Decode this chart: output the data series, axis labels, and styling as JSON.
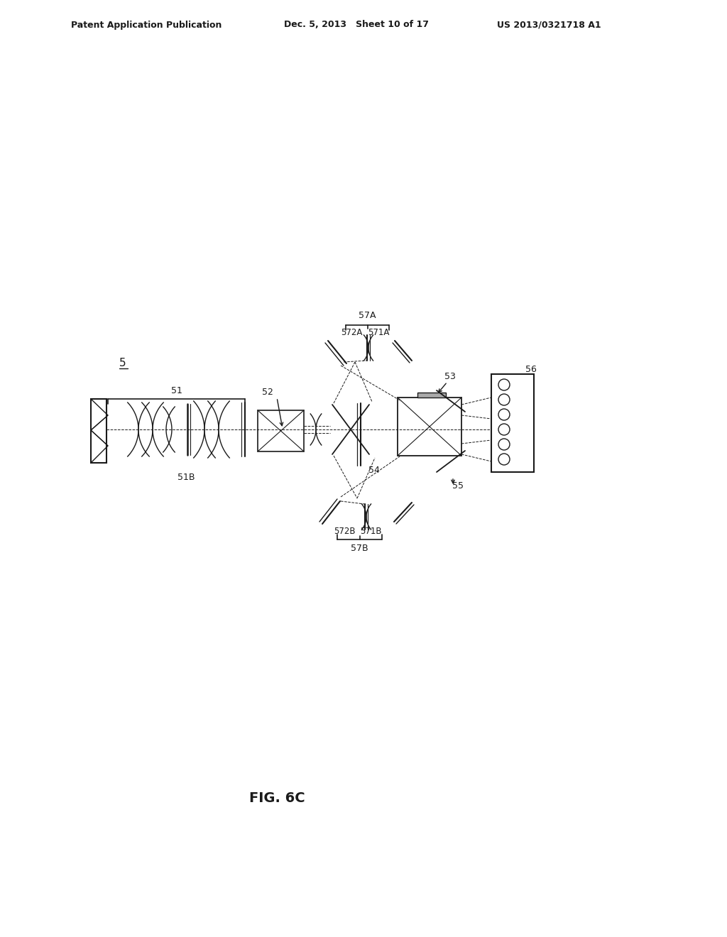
{
  "bg_color": "#ffffff",
  "line_color": "#1a1a1a",
  "header_left": "Patent Application Publication",
  "header_mid": "Dec. 5, 2013   Sheet 10 of 17",
  "header_right": "US 2013/0321718 A1",
  "fig_label": "FIG. 6C",
  "label_5": "5",
  "label_51": "51",
  "label_51B": "51B",
  "label_52": "52",
  "label_53": "53",
  "label_54": "54",
  "label_55": "55",
  "label_56": "56",
  "label_57A": "57A",
  "label_57B": "57B",
  "label_571A": "571A",
  "label_572A": "572A",
  "label_571B": "571B",
  "label_572B": "572B"
}
